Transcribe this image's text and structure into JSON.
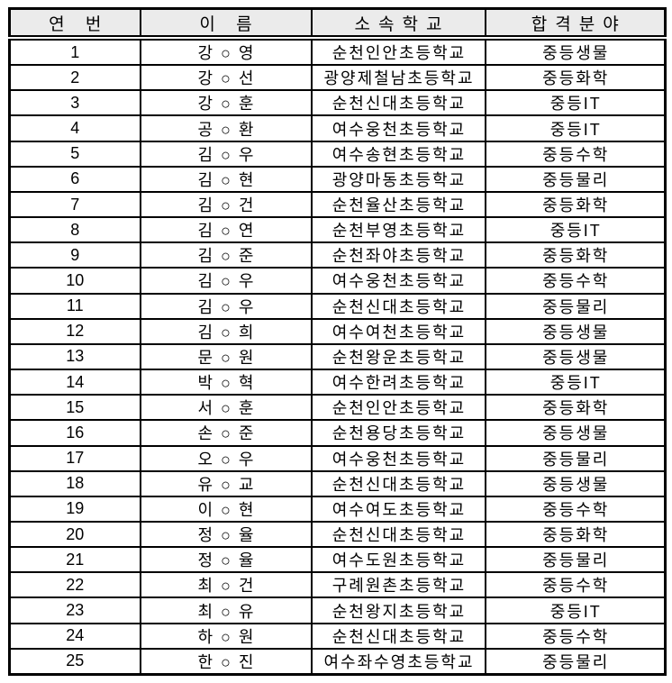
{
  "page": {
    "background": "#ffffff",
    "border_color": "#000000",
    "header_bg": "#ebebeb",
    "text_color": "#000000"
  },
  "table": {
    "columns": [
      {
        "key": "no",
        "label": "연 번"
      },
      {
        "key": "name",
        "label": "이 름"
      },
      {
        "key": "school",
        "label": "소속학교"
      },
      {
        "key": "field",
        "label": "합격분야"
      }
    ],
    "rows": [
      [
        "1",
        "강 ○ 영",
        "순천인안초등학교",
        "중등생물"
      ],
      [
        "2",
        "강 ○ 선",
        "광양제철남초등학교",
        "중등화학"
      ],
      [
        "3",
        "강 ○ 훈",
        "순천신대초등학교",
        "중등IT"
      ],
      [
        "4",
        "공 ○ 환",
        "여수웅천초등학교",
        "중등IT"
      ],
      [
        "5",
        "김 ○ 우",
        "여수송현초등학교",
        "중등수학"
      ],
      [
        "6",
        "김 ○ 현",
        "광양마동초등학교",
        "중등물리"
      ],
      [
        "7",
        "김 ○ 건",
        "순천율산초등학교",
        "중등화학"
      ],
      [
        "8",
        "김 ○ 연",
        "순천부영초등학교",
        "중등IT"
      ],
      [
        "9",
        "김 ○ 준",
        "순천좌야초등학교",
        "중등화학"
      ],
      [
        "10",
        "김 ○ 우",
        "여수웅천초등학교",
        "중등수학"
      ],
      [
        "11",
        "김 ○ 우",
        "순천신대초등학교",
        "중등물리"
      ],
      [
        "12",
        "김 ○ 희",
        "여수여천초등학교",
        "중등생물"
      ],
      [
        "13",
        "문 ○ 원",
        "순천왕운초등학교",
        "중등생물"
      ],
      [
        "14",
        "박 ○ 혁",
        "여수한려초등학교",
        "중등IT"
      ],
      [
        "15",
        "서 ○ 훈",
        "순천인안초등학교",
        "중등화학"
      ],
      [
        "16",
        "손 ○ 준",
        "순천용당초등학교",
        "중등생물"
      ],
      [
        "17",
        "오 ○ 우",
        "여수웅천초등학교",
        "중등물리"
      ],
      [
        "18",
        "유 ○ 교",
        "순천신대초등학교",
        "중등생물"
      ],
      [
        "19",
        "이 ○ 현",
        "여수여도초등학교",
        "중등수학"
      ],
      [
        "20",
        "정 ○ 율",
        "순천신대초등학교",
        "중등화학"
      ],
      [
        "21",
        "정 ○ 율",
        "여수도원초등학교",
        "중등물리"
      ],
      [
        "22",
        "최 ○ 건",
        "구례원촌초등학교",
        "중등수학"
      ],
      [
        "23",
        "최 ○ 유",
        "순천왕지초등학교",
        "중등IT"
      ],
      [
        "24",
        "하 ○ 원",
        "순천신대초등학교",
        "중등수학"
      ],
      [
        "25",
        "한 ○ 진",
        "여수좌수영초등학교",
        "중등물리"
      ]
    ]
  }
}
